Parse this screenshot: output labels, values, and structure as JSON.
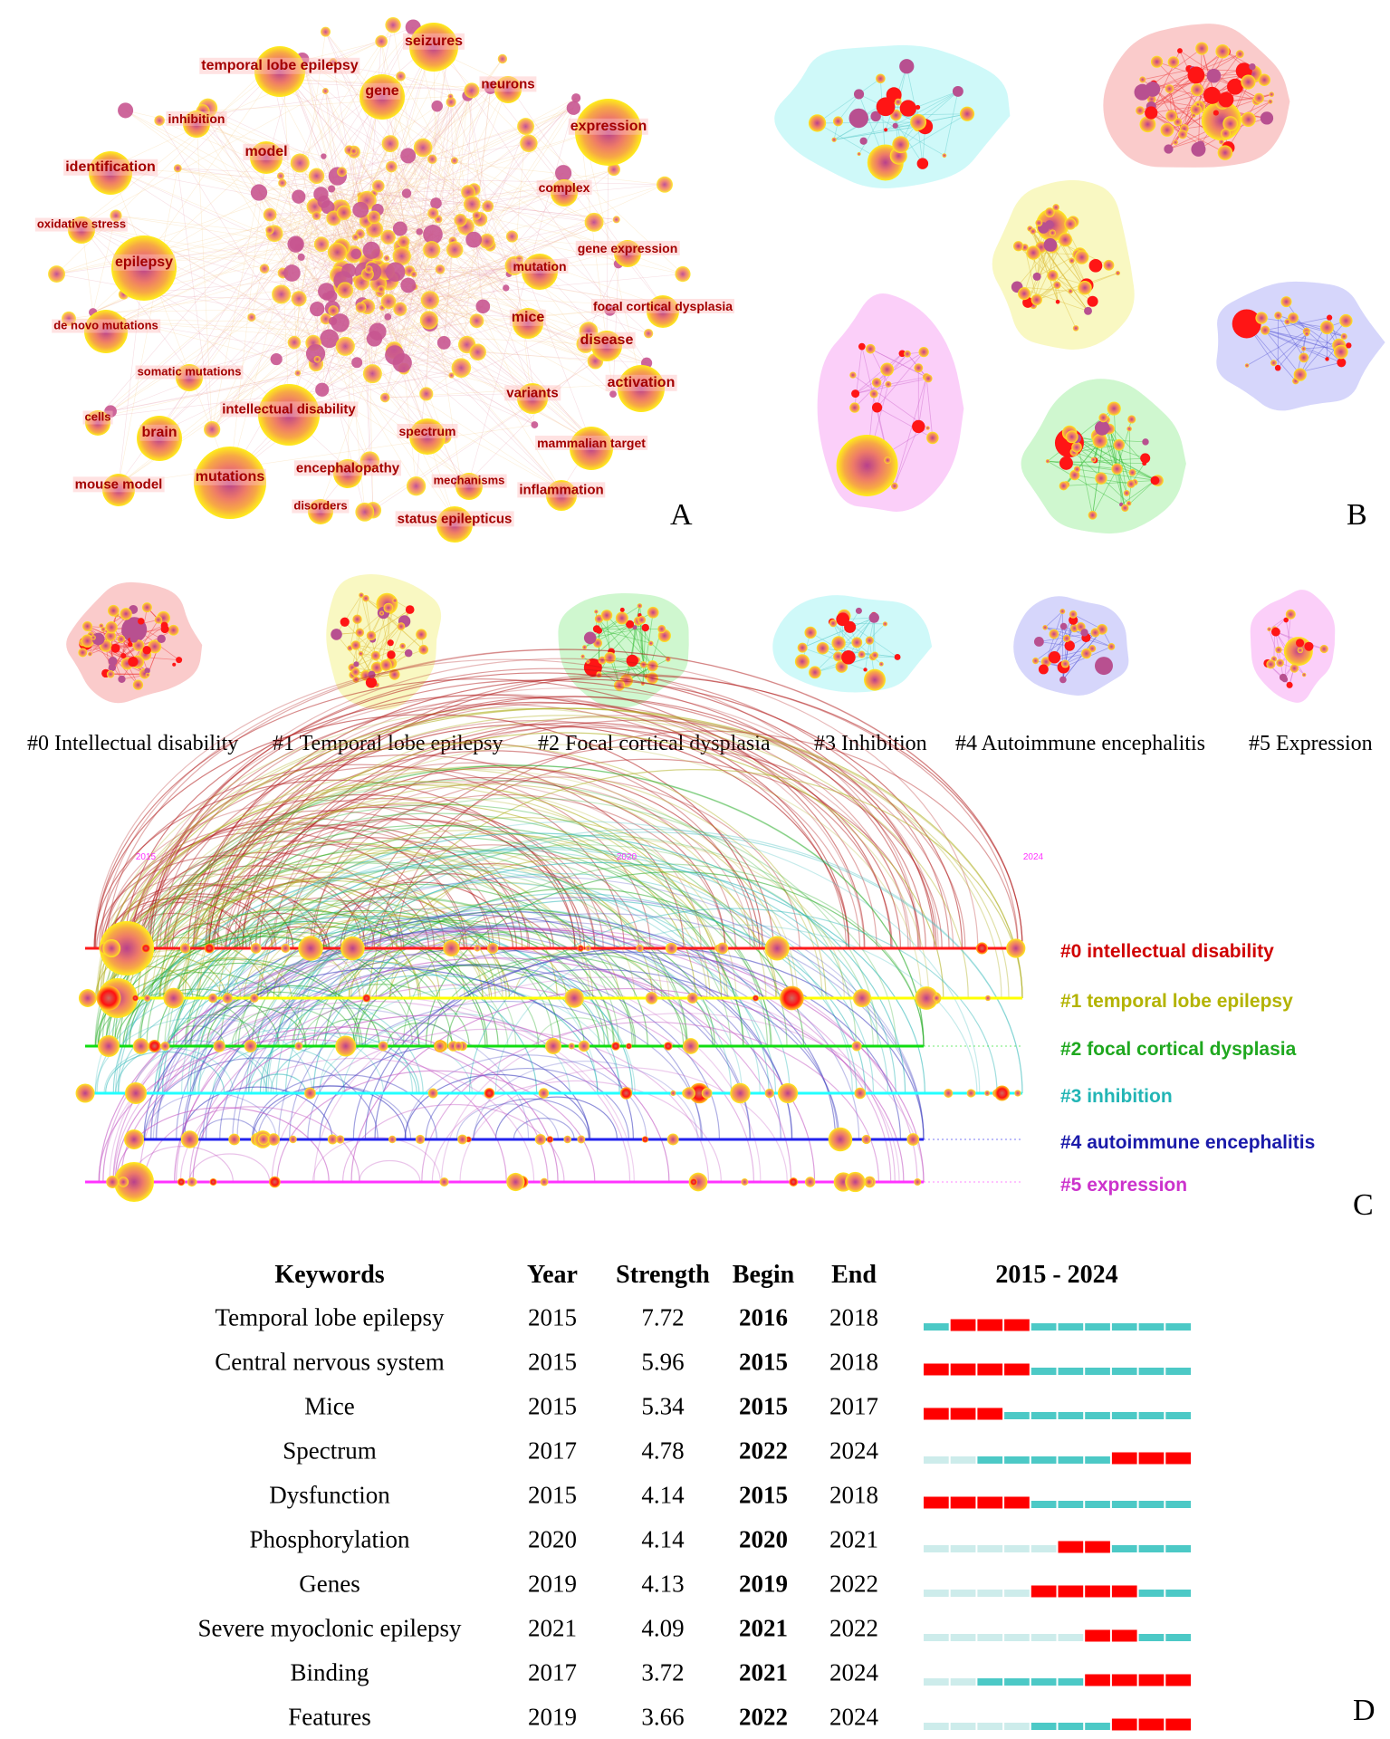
{
  "panel_a": {
    "label": "A",
    "keywords": [
      "seizures",
      "temporal lobe epilepsy",
      "gene",
      "neurons",
      "expression",
      "inhibition",
      "model",
      "identification",
      "complex",
      "oxidative stress",
      "epilepsy",
      "gene expression",
      "mutation",
      "focal cortical dysplasia",
      "mice",
      "de novo mutations",
      "disease",
      "somatic mutations",
      "activation",
      "variants",
      "intellectual disability",
      "cells",
      "brain",
      "spectrum",
      "mammalian target",
      "mouse model",
      "mutations",
      "encephalopathy",
      "mechanisms",
      "inflammation",
      "disorders",
      "status epilepticus"
    ]
  },
  "panel_b": {
    "label": "B"
  },
  "cluster_thumbnails": [
    {
      "name": "#0 Intellectual disability",
      "color": "#ff3030"
    },
    {
      "name": "#1 Temporal lobe epilepsy",
      "color": "#f2f060"
    },
    {
      "name": "#2 Focal cortical dysplasia",
      "color": "#7ee87e"
    },
    {
      "name": "#3 Inhibition",
      "color": "#7ff0f0"
    },
    {
      "name": "#4 Autoimmune encephalitis",
      "color": "#8a8cf0"
    },
    {
      "name": "#5 Expression",
      "color": "#f590f0"
    }
  ],
  "panel_c": {
    "label": "C",
    "years": [
      "2015",
      "2020",
      "2024"
    ],
    "clusters": [
      {
        "label": "#0 intellectual disability",
        "line_color": "#ff1a1a",
        "text_color": "#d00000",
        "arc_color": "#b01818"
      },
      {
        "label": "#1 temporal lobe epilepsy",
        "line_color": "#ffff00",
        "text_color": "#b3b300",
        "arc_color": "#b0b020"
      },
      {
        "label": "#2 focal cortical dysplasia",
        "line_color": "#11dd11",
        "text_color": "#1fa81f",
        "arc_color": "#22aa22"
      },
      {
        "label": "#3 inhibition",
        "line_color": "#22ffff",
        "text_color": "#22b5b5",
        "arc_color": "#30b8b8"
      },
      {
        "label": "#4 autoimmune encephalitis",
        "line_color": "#2222ee",
        "text_color": "#1a1aaa",
        "arc_color": "#4040c0"
      },
      {
        "label": "#5 expression",
        "line_color": "#ff33ff",
        "text_color": "#cc33cc",
        "arc_color": "#c050c0"
      }
    ]
  },
  "panel_d": {
    "label": "D",
    "headers": {
      "keywords": "Keywords",
      "year": "Year",
      "strength": "Strength",
      "begin": "Begin",
      "end": "End",
      "range": "2015 - 2024"
    },
    "range_start": 2015,
    "range_end": 2024,
    "rows": [
      {
        "keyword": "Temporal lobe epilepsy",
        "year": "2015",
        "strength": "7.72",
        "begin": "2016",
        "end": "2018"
      },
      {
        "keyword": "Central nervous system",
        "year": "2015",
        "strength": "5.96",
        "begin": "2015",
        "end": "2018"
      },
      {
        "keyword": "Mice",
        "year": "2015",
        "strength": "5.34",
        "begin": "2015",
        "end": "2017"
      },
      {
        "keyword": "Spectrum",
        "year": "2017",
        "strength": "4.78",
        "begin": "2022",
        "end": "2024"
      },
      {
        "keyword": "Dysfunction",
        "year": "2015",
        "strength": "4.14",
        "begin": "2015",
        "end": "2018"
      },
      {
        "keyword": "Phosphorylation",
        "year": "2020",
        "strength": "4.14",
        "begin": "2020",
        "end": "2021"
      },
      {
        "keyword": "Genes",
        "year": "2019",
        "strength": "4.13",
        "begin": "2019",
        "end": "2022"
      },
      {
        "keyword": "Severe myoclonic epilepsy",
        "year": "2021",
        "strength": "4.09",
        "begin": "2021",
        "end": "2022"
      },
      {
        "keyword": "Binding",
        "year": "2017",
        "strength": "3.72",
        "begin": "2021",
        "end": "2024"
      },
      {
        "keyword": "Features",
        "year": "2019",
        "strength": "3.66",
        "begin": "2022",
        "end": "2024"
      }
    ],
    "colors": {
      "burst": "#ff0000",
      "active": "#4cc9c6",
      "inactive": "#cdeceb"
    }
  }
}
